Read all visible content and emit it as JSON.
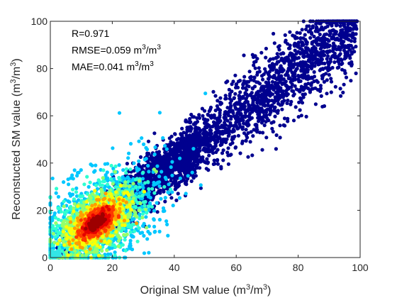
{
  "chart_data": {
    "type": "scatter",
    "title": "",
    "xlabel": "Original SM value (m",
    "ylabel": "Reconstucted SM value (m",
    "unit_exponent": "3",
    "unit_slash": "/m",
    "unit_close": ")",
    "xlim": [
      0,
      100
    ],
    "ylim": [
      0,
      100
    ],
    "x_ticks": [
      "0",
      "20",
      "40",
      "60",
      "80",
      "100"
    ],
    "y_ticks": [
      "0",
      "20",
      "40",
      "60",
      "80",
      "100"
    ],
    "grid": false,
    "legend": "none",
    "colormap": "jet",
    "marker_color_low": "#00008f",
    "annotations": [
      {
        "text": "R=0.971",
        "unit": false
      },
      {
        "text": "RMSE=0.059 m",
        "unit": true
      },
      {
        "text": "MAE=0.041 m",
        "unit": true
      }
    ],
    "density_core": {
      "center": [
        15,
        15
      ],
      "description_points": [
        {
          "x": 15,
          "y": 15,
          "density": 1.0
        },
        {
          "x": 20,
          "y": 20,
          "density": 0.55
        },
        {
          "x": 30,
          "y": 30,
          "density": 0.3
        },
        {
          "x": 45,
          "y": 45,
          "density": 0.12
        },
        {
          "x": 60,
          "y": 60,
          "density": 0.05
        },
        {
          "x": 80,
          "y": 80,
          "density": 0.03
        },
        {
          "x": 95,
          "y": 95,
          "density": 0.01
        }
      ]
    },
    "overall_trend": {
      "slope": 1.0,
      "intercept": 0
    }
  }
}
